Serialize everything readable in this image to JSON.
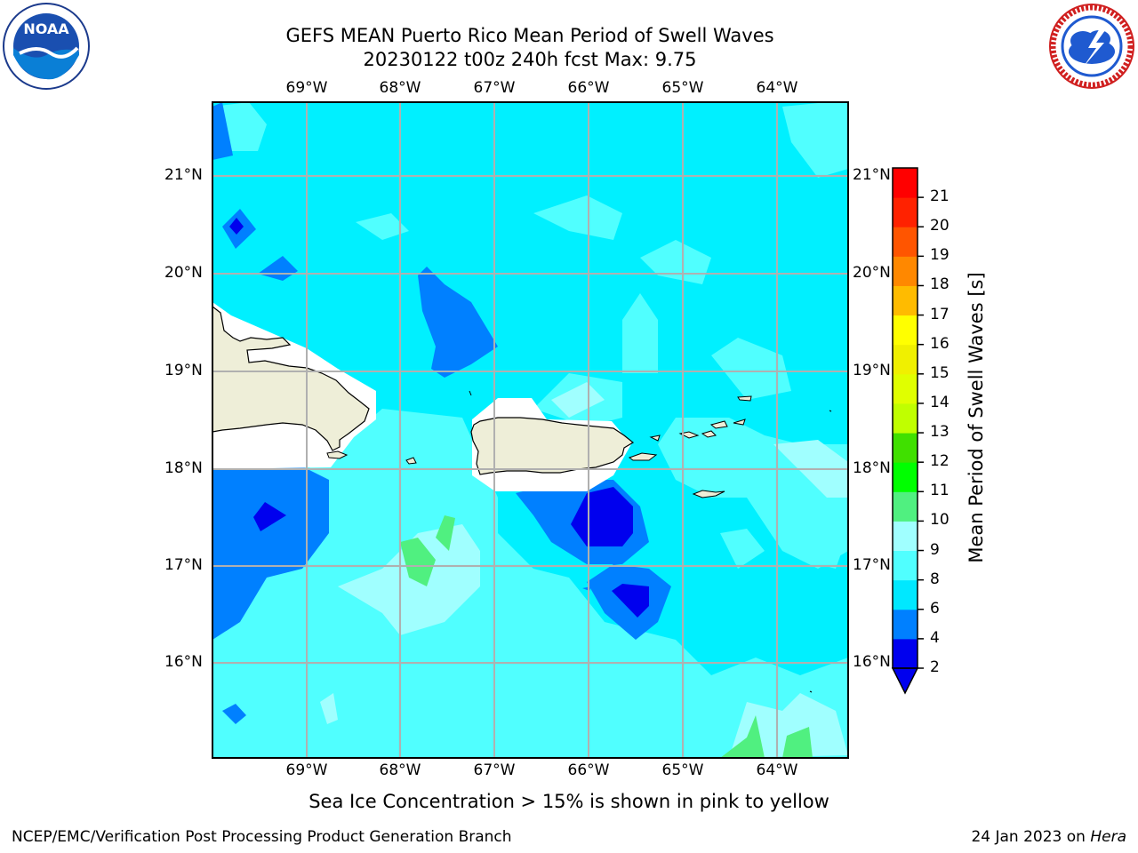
{
  "title_line1": "GEFS MEAN Puerto Rico Mean Period of Swell Waves",
  "title_line2": "20230122 t00z 240h fcst   Max: 9.75",
  "lon_labels": [
    "69°W",
    "68°W",
    "67°W",
    "66°W",
    "65°W",
    "64°W"
  ],
  "lat_labels": [
    "21°N",
    "20°N",
    "19°N",
    "18°N",
    "17°N",
    "16°N"
  ],
  "colorbar": {
    "title": "Mean Period of Swell Waves [s]",
    "tick_labels": [
      "2",
      "4",
      "6",
      "8",
      "9",
      "10",
      "11",
      "12",
      "13",
      "14",
      "15",
      "16",
      "17",
      "18",
      "19",
      "20",
      "21"
    ],
    "bins": [
      {
        "from": 2,
        "to": 4,
        "color": "#0000ee"
      },
      {
        "from": 4,
        "to": 6,
        "color": "#0080ff"
      },
      {
        "from": 6,
        "to": 8,
        "color": "#00e8ff"
      },
      {
        "from": 8,
        "to": 9,
        "color": "#50ffff"
      },
      {
        "from": 9,
        "to": 10,
        "color": "#a0ffff"
      },
      {
        "from": 10,
        "to": 11,
        "color": "#50f080"
      },
      {
        "from": 11,
        "to": 12,
        "color": "#00ff00"
      },
      {
        "from": 12,
        "to": 13,
        "color": "#40e000"
      },
      {
        "from": 13,
        "to": 14,
        "color": "#c0ff00"
      },
      {
        "from": 14,
        "to": 15,
        "color": "#e0ff00"
      },
      {
        "from": 15,
        "to": 16,
        "color": "#f0f000"
      },
      {
        "from": 16,
        "to": 17,
        "color": "#ffff00"
      },
      {
        "from": 17,
        "to": 18,
        "color": "#ffbb00"
      },
      {
        "from": 18,
        "to": 19,
        "color": "#ff8800"
      },
      {
        "from": 19,
        "to": 20,
        "color": "#ff5500"
      },
      {
        "from": 20,
        "to": 21,
        "color": "#ff2200"
      },
      {
        "from": 21,
        "to": 22,
        "color": "#ff0000"
      }
    ],
    "under_color": "#0000ee"
  },
  "map_colors": {
    "ocean_base": "#00f0ff",
    "period_8_9": "#50ffff",
    "period_9_10": "#a0ffff",
    "period_10_11": "#50f080",
    "period_4_6": "#0080ff",
    "period_2_4": "#0000ee",
    "land": "#eeeed8",
    "no_data": "#ffffff",
    "gridline": "#b0b0b0"
  },
  "sea_ice_note": "Sea Ice Concentration > 15% is shown in pink to yellow",
  "footer_left": "NCEP/EMC/Verification Post Processing Product Generation Branch",
  "footer_right_date": "24 Jan 2023 on ",
  "footer_right_host": "Hera",
  "logos": {
    "left": "noaa-logo",
    "right": "nws-logo"
  }
}
